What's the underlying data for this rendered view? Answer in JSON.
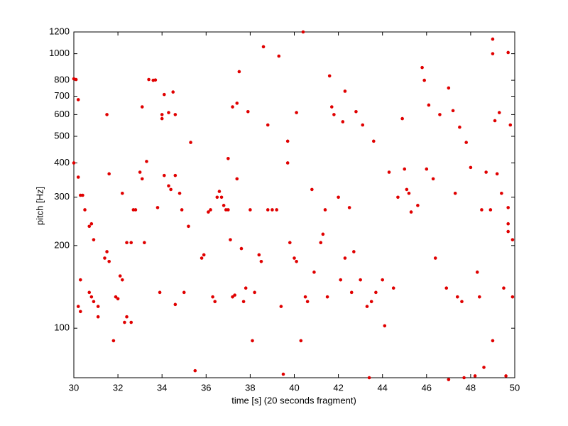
{
  "chart_data": {
    "type": "scatter",
    "x_label": "time [s] (20 seconds fragment)",
    "y_label": "pitch [Hz]",
    "color": "#e00000",
    "log_y": true,
    "grid": false,
    "xlim": [
      30,
      50
    ],
    "xticks": [
      30,
      32,
      34,
      36,
      38,
      40,
      42,
      44,
      46,
      48,
      50
    ],
    "ylim": [
      66,
      1200
    ],
    "yticks": [
      100,
      200,
      300,
      400,
      500,
      600,
      700,
      800,
      1000,
      1200
    ],
    "x": [
      30.0,
      30.1,
      30.2,
      30.0,
      30.2,
      30.3,
      30.4,
      30.5,
      30.7,
      30.8,
      30.9,
      30.3,
      30.2,
      30.3,
      30.7,
      30.8,
      30.9,
      31.1,
      31.1,
      31.4,
      31.5,
      31.6,
      31.5,
      31.6,
      31.8,
      31.9,
      32.0,
      32.1,
      32.2,
      32.3,
      32.4,
      32.2,
      32.4,
      32.6,
      32.7,
      32.8,
      32.6,
      33.0,
      33.1,
      33.1,
      33.2,
      33.3,
      33.4,
      33.6,
      33.7,
      33.8,
      34.0,
      34.0,
      34.1,
      34.1,
      34.3,
      34.3,
      34.4,
      34.5,
      34.6,
      34.6,
      33.9,
      34.6,
      34.9,
      34.8,
      35.0,
      35.2,
      35.3,
      35.5,
      35.8,
      35.9,
      36.1,
      36.2,
      36.3,
      36.4,
      36.5,
      36.6,
      36.7,
      36.8,
      36.9,
      37.0,
      37.0,
      37.1,
      37.2,
      37.3,
      37.2,
      37.4,
      37.5,
      37.4,
      37.6,
      37.7,
      37.8,
      37.9,
      38.0,
      38.1,
      38.2,
      38.4,
      38.5,
      38.6,
      38.8,
      38.8,
      39.0,
      39.2,
      39.3,
      39.4,
      39.5,
      39.7,
      39.7,
      39.8,
      40.0,
      40.1,
      40.1,
      40.3,
      40.4,
      40.5,
      40.6,
      40.8,
      40.9,
      41.2,
      41.3,
      41.4,
      41.5,
      41.6,
      41.7,
      41.8,
      42.0,
      42.1,
      42.2,
      42.3,
      42.3,
      42.5,
      42.6,
      42.7,
      42.8,
      43.0,
      43.1,
      43.3,
      43.4,
      43.5,
      43.6,
      43.7,
      44.0,
      44.1,
      44.3,
      44.5,
      44.7,
      44.9,
      45.0,
      45.1,
      45.2,
      45.3,
      45.6,
      45.8,
      45.9,
      46.0,
      46.1,
      46.3,
      46.4,
      46.6,
      46.9,
      47.0,
      47.0,
      47.2,
      47.3,
      47.4,
      47.5,
      47.6,
      47.7,
      47.8,
      48.0,
      48.2,
      48.3,
      48.4,
      48.6,
      48.7,
      48.9,
      49.0,
      49.0,
      49.1,
      49.2,
      49.3,
      49.4,
      49.5,
      49.6,
      49.7,
      49.7,
      49.8,
      49.9,
      49.9,
      49.0,
      48.5,
      49.7,
      49.7
    ],
    "values": [
      810,
      805,
      680,
      400,
      355,
      305,
      305,
      270,
      235,
      240,
      210,
      150,
      120,
      115,
      135,
      130,
      125,
      120,
      110,
      180,
      190,
      175,
      600,
      365,
      90,
      130,
      128,
      155,
      150,
      105,
      110,
      310,
      205,
      205,
      270,
      270,
      105,
      370,
      350,
      640,
      205,
      405,
      805,
      800,
      802,
      275,
      600,
      580,
      710,
      360,
      610,
      330,
      320,
      725,
      360,
      600,
      135,
      122,
      270,
      310,
      135,
      235,
      475,
      70,
      180,
      185,
      265,
      270,
      130,
      125,
      300,
      315,
      300,
      280,
      270,
      270,
      415,
      210,
      130,
      132,
      640,
      660,
      860,
      350,
      195,
      125,
      140,
      615,
      270,
      90,
      135,
      185,
      175,
      1060,
      550,
      270,
      270,
      270,
      980,
      120,
      68,
      480,
      400,
      205,
      180,
      175,
      610,
      90,
      1200,
      130,
      125,
      320,
      160,
      205,
      220,
      270,
      130,
      830,
      640,
      600,
      300,
      150,
      565,
      730,
      180,
      275,
      135,
      190,
      615,
      150,
      550,
      120,
      66,
      125,
      480,
      135,
      150,
      102,
      370,
      140,
      300,
      580,
      380,
      320,
      310,
      265,
      280,
      890,
      800,
      380,
      650,
      350,
      180,
      600,
      140,
      750,
      65,
      620,
      310,
      130,
      540,
      125,
      66,
      475,
      385,
      67,
      160,
      130,
      72,
      370,
      270,
      1000,
      1130,
      570,
      365,
      610,
      310,
      140,
      67,
      1010,
      275,
      550,
      210,
      130,
      90,
      270,
      240,
      225
    ]
  }
}
